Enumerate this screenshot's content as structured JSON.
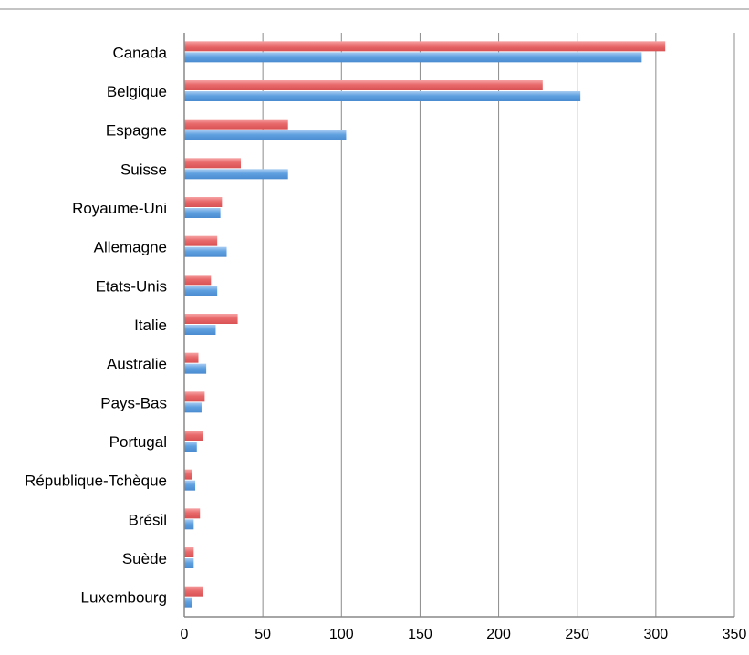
{
  "chart_data": {
    "type": "bar",
    "orientation": "horizontal",
    "title": "",
    "xlabel": "",
    "ylabel": "",
    "categories": [
      "Canada",
      "Belgique",
      "Espagne",
      "Suisse",
      "Royaume-Uni",
      "Allemagne",
      "Etats-Unis",
      "Italie",
      "Australie",
      "Pays-Bas",
      "Portugal",
      "République-Tchèque",
      "Brésil",
      "Suède",
      "Luxembourg"
    ],
    "series": [
      {
        "color": "#e8696b",
        "values": [
          306,
          228,
          66,
          36,
          24,
          21,
          17,
          34,
          9,
          13,
          12,
          5,
          10,
          6,
          12
        ]
      },
      {
        "color": "#5fa0e0",
        "values": [
          291,
          252,
          103,
          66,
          23,
          27,
          21,
          20,
          14,
          11,
          8,
          7,
          6,
          6,
          5
        ]
      }
    ],
    "xlim": [
      0,
      350
    ],
    "xticks": [
      0,
      50,
      100,
      150,
      200,
      250,
      300,
      350
    ],
    "grid": true,
    "legend": "none"
  }
}
